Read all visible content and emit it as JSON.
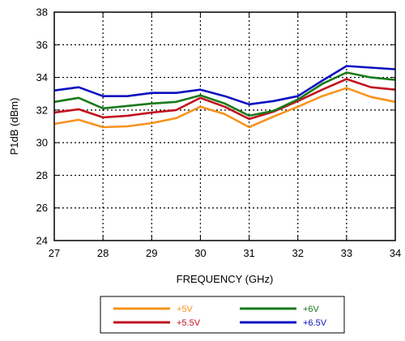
{
  "chart_data": {
    "type": "line",
    "title": "",
    "xlabel": "FREQUENCY (GHz)",
    "ylabel": "P1dB (dBm)",
    "xlim": [
      27,
      34
    ],
    "ylim": [
      24,
      38
    ],
    "xticks": [
      27,
      28,
      29,
      30,
      31,
      32,
      33,
      34
    ],
    "yticks": [
      24,
      26,
      28,
      30,
      32,
      34,
      36,
      38
    ],
    "grid": true,
    "grid_style": "dotted",
    "legend_position": "bottom",
    "x": [
      27,
      27.5,
      28,
      28.5,
      29,
      29.5,
      30,
      30.5,
      31,
      31.5,
      32,
      32.5,
      33,
      33.5,
      34
    ],
    "series": [
      {
        "name": "+5V",
        "color": "#f7931e",
        "values": [
          31.15,
          31.4,
          30.95,
          31.0,
          31.2,
          31.5,
          32.2,
          31.75,
          30.95,
          31.6,
          32.2,
          32.85,
          33.35,
          32.8,
          32.5
        ]
      },
      {
        "name": "+5.5V",
        "color": "#c1121f",
        "values": [
          31.85,
          32.05,
          31.55,
          31.65,
          31.85,
          32.0,
          32.75,
          32.2,
          31.45,
          31.9,
          32.55,
          33.25,
          33.9,
          33.4,
          33.25
        ]
      },
      {
        "name": "+6V",
        "color": "#1a7a1a",
        "values": [
          32.5,
          32.75,
          32.1,
          32.25,
          32.4,
          32.5,
          32.9,
          32.4,
          31.65,
          31.95,
          32.65,
          33.6,
          34.3,
          34.0,
          33.85
        ]
      },
      {
        "name": "+6.5V",
        "color": "#0a0fbf",
        "values": [
          33.2,
          33.4,
          32.85,
          32.85,
          33.05,
          33.05,
          33.25,
          32.85,
          32.35,
          32.55,
          32.85,
          33.8,
          34.7,
          34.6,
          34.5
        ]
      }
    ],
    "legend_columns": [
      [
        "+5V",
        "+5.5V"
      ],
      [
        "+6V",
        "+6.5V"
      ]
    ]
  }
}
